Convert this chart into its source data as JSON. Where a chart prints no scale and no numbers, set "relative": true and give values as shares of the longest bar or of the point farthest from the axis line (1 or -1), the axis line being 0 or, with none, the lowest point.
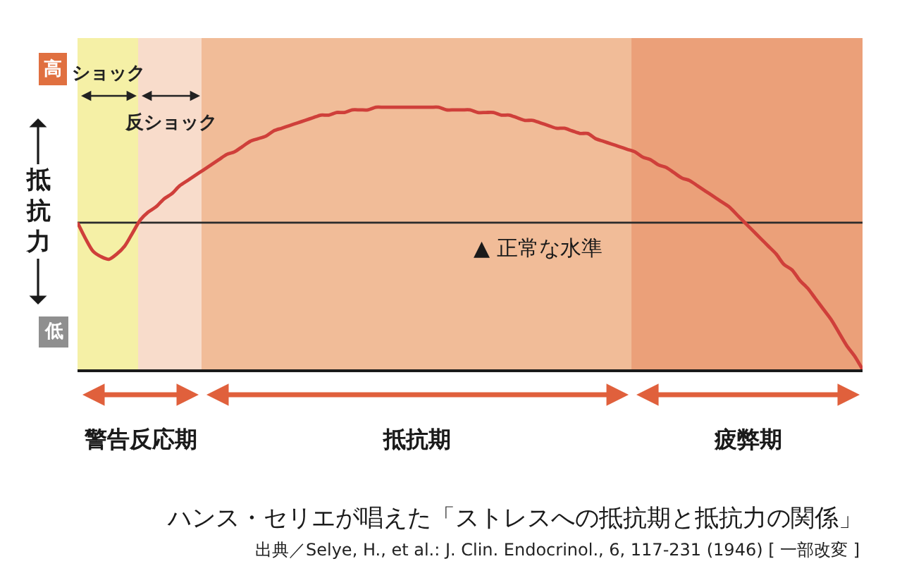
{
  "chart_data": {
    "type": "line",
    "relative": true,
    "marker": "none",
    "line_style": "solid",
    "title": "ハンス・セリエが唱えた「ストレスへの抵抗期と抵抗力の関係」",
    "ylabel": "抵抗力",
    "annotations": [
      "高",
      "低",
      "ショック",
      "反ショック",
      "警告反応期",
      "抵抗期",
      "疲弊期",
      "出典／Selye, H., et al.: J. Clin. Endocrinol., 6, 117-231 (1946) [ 一部改変 ]"
    ],
    "categories": [
      null,
      null,
      null,
      null,
      null,
      null,
      null,
      null,
      null,
      null,
      null,
      null,
      null,
      null,
      null,
      null,
      null,
      null,
      null,
      null,
      null,
      null,
      null,
      null,
      null,
      null,
      null,
      null,
      null,
      null,
      null,
      null,
      null,
      null,
      null,
      null,
      null,
      null,
      null,
      null,
      null,
      null,
      null,
      null,
      null,
      null,
      null,
      null,
      null,
      null,
      null,
      null,
      null,
      null,
      null,
      null,
      null,
      null,
      null,
      null,
      null,
      null,
      null,
      null,
      null,
      null,
      null,
      null,
      null,
      null,
      null,
      null,
      null,
      null,
      null,
      null,
      null,
      null,
      null,
      null,
      null,
      null,
      null,
      null,
      null,
      null,
      null,
      null,
      null,
      null,
      null,
      null,
      null,
      null,
      null,
      null,
      null,
      null,
      null,
      null,
      null
    ],
    "series": [
      {
        "color": "#cf3f3a",
        "values": [
          0.56,
          0.5,
          0.45,
          0.43,
          0.42,
          0.44,
          0.47,
          0.52,
          0.57,
          0.6,
          0.62,
          0.65,
          0.67,
          0.7,
          0.72,
          0.74,
          0.76,
          0.78,
          0.8,
          0.82,
          0.83,
          0.85,
          0.87,
          0.88,
          0.89,
          0.91,
          0.92,
          0.93,
          0.94,
          0.95,
          0.96,
          0.97,
          0.97,
          0.98,
          0.98,
          0.99,
          0.99,
          0.99,
          1.0,
          1.0,
          1.0,
          1.0,
          1.0,
          1.0,
          1.0,
          1.0,
          1.0,
          0.99,
          0.99,
          0.99,
          0.99,
          0.98,
          0.98,
          0.98,
          0.97,
          0.97,
          0.96,
          0.95,
          0.95,
          0.94,
          0.93,
          0.92,
          0.92,
          0.91,
          0.9,
          0.9,
          0.88,
          0.87,
          0.86,
          0.85,
          0.84,
          0.83,
          0.81,
          0.8,
          0.78,
          0.77,
          0.75,
          0.73,
          0.72,
          0.7,
          0.68,
          0.66,
          0.64,
          0.62,
          0.59,
          0.56,
          0.53,
          0.5,
          0.47,
          0.44,
          0.4,
          0.38,
          0.34,
          0.31,
          0.27,
          0.23,
          0.19,
          0.14,
          0.09,
          0.05,
          0.0
        ]
      }
    ],
    "ref_lines": [
      {
        "axis": "y",
        "value": 0.56,
        "label": "▲ 正常な水準",
        "color": "#2b2b2b"
      }
    ]
  }
}
